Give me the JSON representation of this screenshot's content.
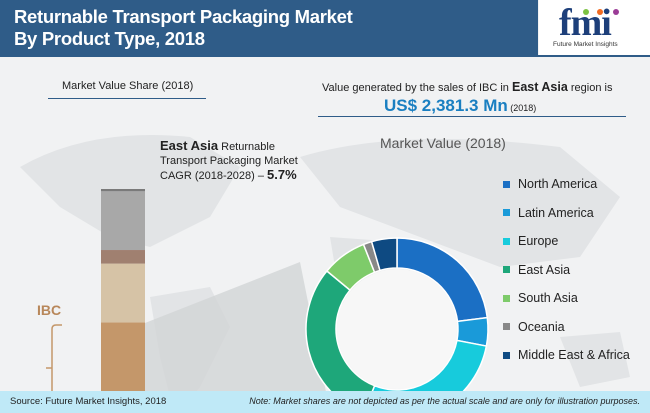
{
  "header": {
    "title_line1": "Returnable Transport Packaging Market",
    "title_line2": "By Product Type, 2018",
    "logo_text": "fmi",
    "logo_sub": "Future Market Insights"
  },
  "left": {
    "heading": "Market Value Share (2018)",
    "cagr_region": "East Asia",
    "cagr_text1": " Returnable",
    "cagr_text2": "Transport Packaging Market",
    "cagr_text3": "CAGR (2018-2028) – ",
    "cagr_value": "5.7%",
    "ibc_label": "IBC"
  },
  "right": {
    "value_text1": "Value generated by the sales of IBC in ",
    "value_region": "East Asia",
    "value_text2": " region is",
    "value_amount": "US$ 2,381.3 Mn",
    "value_year": " (2018)",
    "chart_title": "Market Value (2018)"
  },
  "footer": {
    "source": "Source: Future Market Insights, 2018",
    "note": "Note: Market shares are not depicted as per the actual scale and are only for illustration purposes."
  },
  "colors": {
    "header": "#2f5c88",
    "accent": "#1a7fc1",
    "ibc": "#c4976a",
    "footer": "#bfe9f7"
  },
  "chart_data": [
    {
      "type": "bar",
      "stacked": true,
      "title": "Market Value Share (2018)",
      "segments": [
        {
          "label": "IBC",
          "value": 41,
          "color": "#c4976a"
        },
        {
          "value": 26,
          "color": "#d6c3a6"
        },
        {
          "value": 6,
          "color": "#a08070"
        },
        {
          "value": 26,
          "color": "#a8a8a8"
        },
        {
          "value": 1,
          "color": "#7a7a7a"
        }
      ]
    },
    {
      "type": "pie",
      "donut": true,
      "title": "Market Value (2018)",
      "legend": "right",
      "series": [
        {
          "name": "North America",
          "value": 23,
          "color": "#1b6fc4"
        },
        {
          "name": "Latin America",
          "value": 5,
          "color": "#1a9ad9"
        },
        {
          "name": "Europe",
          "value": 28,
          "color": "#17cbdc"
        },
        {
          "name": "East Asia",
          "value": 30,
          "color": "#1ea77a"
        },
        {
          "name": "South Asia",
          "value": 8,
          "color": "#7ecb6a"
        },
        {
          "name": "Oceania",
          "value": 1.5,
          "color": "#888888"
        },
        {
          "name": "Middle East & Africa",
          "value": 4.5,
          "color": "#0e4a82"
        }
      ]
    }
  ]
}
